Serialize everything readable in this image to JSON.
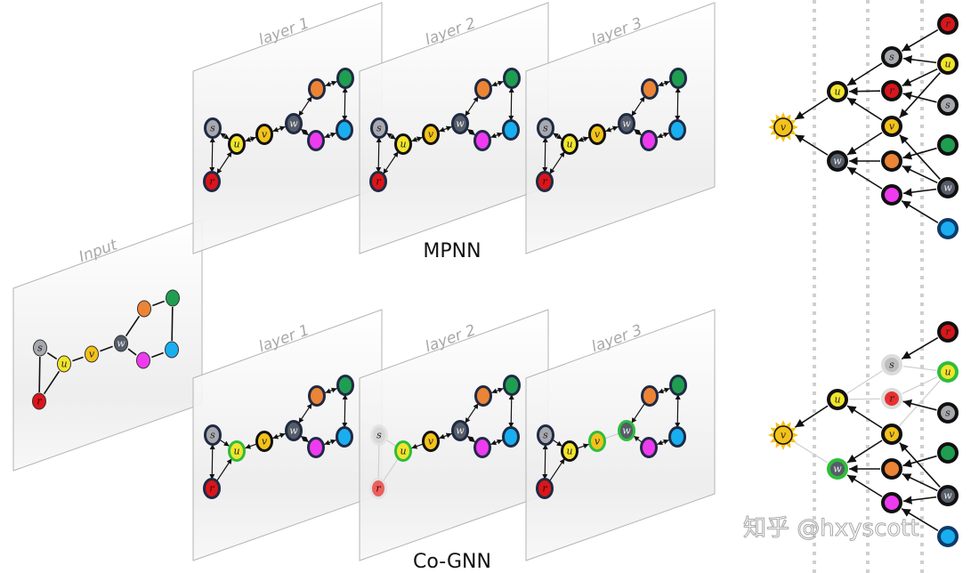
{
  "planes": {
    "input": {
      "label": "Input"
    },
    "mpnn": [
      {
        "label": "layer 1"
      },
      {
        "label": "layer 2"
      },
      {
        "label": "layer 3"
      }
    ],
    "cognn": [
      {
        "label": "layer 1"
      },
      {
        "label": "layer 2"
      },
      {
        "label": "layer 3"
      }
    ]
  },
  "captions": {
    "mpnn": "MPNN",
    "cognn": "Co-GNN"
  },
  "watermark": "知乎 @hxyscott",
  "colors": {
    "s": "#a7a9ae",
    "u": "#f2e52b",
    "v": "#f3c21a",
    "w": "#555d68",
    "r": "#d9161b",
    "orange": "#ec8436",
    "green": "#1f9e52",
    "cyan": "#19aef0",
    "magenta": "#ee3bef",
    "halo": "#2ebd3c",
    "faded_edge": "#d0d0d0",
    "sun": "#f5c21c"
  },
  "graph": {
    "nodes": [
      {
        "id": "s",
        "label": "s"
      },
      {
        "id": "u",
        "label": "u"
      },
      {
        "id": "v",
        "label": "v"
      },
      {
        "id": "w",
        "label": "w"
      },
      {
        "id": "r",
        "label": "r"
      },
      {
        "id": "orange",
        "label": ""
      },
      {
        "id": "green",
        "label": ""
      },
      {
        "id": "cyan",
        "label": ""
      },
      {
        "id": "magenta",
        "label": ""
      }
    ],
    "edges": [
      [
        "s",
        "u"
      ],
      [
        "s",
        "r"
      ],
      [
        "r",
        "u"
      ],
      [
        "u",
        "v"
      ],
      [
        "v",
        "w"
      ],
      [
        "w",
        "orange"
      ],
      [
        "w",
        "magenta"
      ],
      [
        "orange",
        "green"
      ],
      [
        "green",
        "cyan"
      ],
      [
        "cyan",
        "magenta"
      ]
    ]
  },
  "cognn_states": [
    {
      "halo": [
        "u"
      ],
      "faded_nodes": [],
      "directed": [
        [
          "s",
          "u"
        ],
        [
          "r",
          "u"
        ],
        [
          "v",
          "u"
        ]
      ],
      "faded_edges": []
    },
    {
      "halo": [
        "u"
      ],
      "faded_nodes": [
        "s",
        "r"
      ],
      "directed": [
        [
          "v",
          "u"
        ]
      ],
      "faded_edges": [
        [
          "s",
          "u"
        ],
        [
          "r",
          "u"
        ],
        [
          "s",
          "r"
        ]
      ]
    },
    {
      "halo": [
        "v",
        "w"
      ],
      "faded_nodes": [],
      "directed": [
        [
          "s",
          "u"
        ],
        [
          "r",
          "u"
        ],
        [
          "u",
          "v"
        ],
        [
          "orange",
          "w"
        ],
        [
          "magenta",
          "w"
        ]
      ],
      "faded_edges": [
        [
          "v",
          "w"
        ]
      ]
    }
  ],
  "trees": {
    "mpnn": {
      "root": "v",
      "level1": [
        "u",
        "w"
      ],
      "level2": [
        "s",
        "r",
        "v",
        "orange",
        "magenta"
      ],
      "level3": [
        "r",
        "u",
        "s",
        "green",
        "w",
        "cyan"
      ],
      "faded_nodes": [],
      "halo_nodes": [],
      "edges": [
        [
          "1:0",
          "0:0"
        ],
        [
          "1:1",
          "0:0"
        ],
        [
          "2:0",
          "1:0"
        ],
        [
          "2:1",
          "1:0"
        ],
        [
          "2:2",
          "1:0"
        ],
        [
          "2:2",
          "1:1"
        ],
        [
          "2:3",
          "1:1"
        ],
        [
          "2:4",
          "1:1"
        ],
        [
          "3:0",
          "2:0"
        ],
        [
          "3:1",
          "2:0"
        ],
        [
          "3:1",
          "2:1"
        ],
        [
          "3:1",
          "2:2"
        ],
        [
          "3:2",
          "2:1"
        ],
        [
          "3:3",
          "2:3"
        ],
        [
          "3:4",
          "2:3"
        ],
        [
          "3:4",
          "2:2"
        ],
        [
          "3:4",
          "2:4"
        ],
        [
          "3:5",
          "2:4"
        ]
      ],
      "faded_edges": []
    },
    "cognn": {
      "root": "v",
      "level1": [
        "u",
        "w"
      ],
      "level2": [
        "s",
        "r",
        "v",
        "orange",
        "magenta"
      ],
      "level3": [
        "r",
        "u",
        "s",
        "green",
        "w",
        "cyan"
      ],
      "faded_nodes": [
        "2:0",
        "2:1"
      ],
      "halo_nodes": [
        "1:1",
        "3:1"
      ],
      "edges": [
        [
          "1:0",
          "0:0"
        ],
        [
          "2:2",
          "1:0"
        ],
        [
          "2:2",
          "1:1"
        ],
        [
          "2:3",
          "1:1"
        ],
        [
          "2:4",
          "1:1"
        ],
        [
          "3:0",
          "2:0"
        ],
        [
          "3:2",
          "2:1"
        ],
        [
          "3:3",
          "2:3"
        ],
        [
          "3:4",
          "2:3"
        ],
        [
          "3:4",
          "2:2"
        ],
        [
          "3:4",
          "2:4"
        ],
        [
          "3:5",
          "2:4"
        ]
      ],
      "faded_edges": [
        [
          "1:1",
          "0:0"
        ],
        [
          "2:0",
          "1:0"
        ],
        [
          "2:1",
          "1:0"
        ],
        [
          "3:1",
          "2:0"
        ],
        [
          "3:1",
          "2:1"
        ],
        [
          "3:1",
          "2:2"
        ]
      ]
    }
  }
}
